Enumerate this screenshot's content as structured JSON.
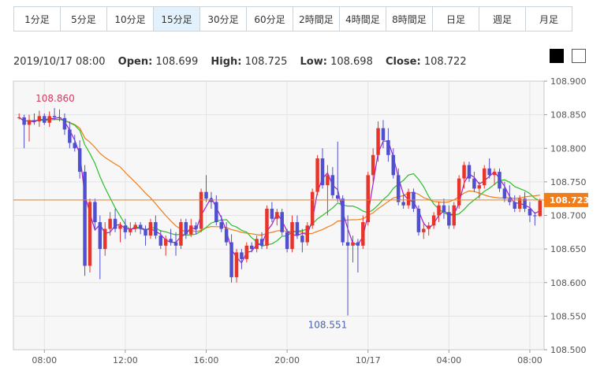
{
  "tabs": [
    {
      "label": "1分足",
      "active": false
    },
    {
      "label": "5分足",
      "active": false
    },
    {
      "label": "10分足",
      "active": false
    },
    {
      "label": "15分足",
      "active": true
    },
    {
      "label": "30分足",
      "active": false
    },
    {
      "label": "60分足",
      "active": false
    },
    {
      "label": "2時間足",
      "active": false
    },
    {
      "label": "4時間足",
      "active": false
    },
    {
      "label": "8時間足",
      "active": false
    },
    {
      "label": "日足",
      "active": false
    },
    {
      "label": "週足",
      "active": false
    },
    {
      "label": "月足",
      "active": false
    }
  ],
  "ohlc": {
    "datetime": "2019/10/17 08:00",
    "open_label": "Open:",
    "open": "108.699",
    "high_label": "High:",
    "high": "108.725",
    "low_label": "Low:",
    "low": "108.698",
    "close_label": "Close:",
    "close": "108.722"
  },
  "theme_buttons": [
    {
      "name": "dark-theme",
      "color": "#000000"
    },
    {
      "name": "light-theme",
      "color": "#ffffff"
    }
  ],
  "colors": {
    "up": "#e8352b",
    "down": "#4f4fcf",
    "ma_short": "#a020d0",
    "ma_mid": "#2bbf2b",
    "ma_long": "#f07d1a",
    "price_line": "#f07d1a",
    "price_tag": "#f07d1a",
    "high_label": "#d9385b",
    "low_label": "#4a63b0"
  },
  "chart_data": {
    "type": "candlestick",
    "interval": "15分足",
    "ylim": [
      108.5,
      108.9
    ],
    "y_ticks": [
      "108.900",
      "108.850",
      "108.800",
      "108.750",
      "108.700",
      "108.650",
      "108.600",
      "108.550",
      "108.500"
    ],
    "x_ticks": [
      {
        "label": "08:00",
        "index": 5
      },
      {
        "label": "12:00",
        "index": 21
      },
      {
        "label": "16:00",
        "index": 37
      },
      {
        "label": "20:00",
        "index": 53
      },
      {
        "label": "10/17",
        "index": 69
      },
      {
        "label": "04:00",
        "index": 85
      },
      {
        "label": "08:00",
        "index": 101
      }
    ],
    "current_price": "108.723",
    "high_annotation": {
      "label": "108.860",
      "index": 7,
      "value": 108.86
    },
    "low_annotation": {
      "label": "108.551",
      "index": 61,
      "value": 108.551
    },
    "candles": [
      [
        108.845,
        108.852,
        108.843,
        108.846
      ],
      [
        108.846,
        108.85,
        108.8,
        108.835
      ],
      [
        108.835,
        108.85,
        108.81,
        108.842
      ],
      [
        108.842,
        108.852,
        108.835,
        108.84
      ],
      [
        108.84,
        108.856,
        108.832,
        108.848
      ],
      [
        108.848,
        108.852,
        108.835,
        108.838
      ],
      [
        108.838,
        108.855,
        108.832,
        108.848
      ],
      [
        108.848,
        108.86,
        108.842,
        108.846
      ],
      [
        108.846,
        108.858,
        108.84,
        108.845
      ],
      [
        108.845,
        108.852,
        108.82,
        108.828
      ],
      [
        108.828,
        108.84,
        108.8,
        108.808
      ],
      [
        108.808,
        108.82,
        108.795,
        108.8
      ],
      [
        108.8,
        108.812,
        108.755,
        108.765
      ],
      [
        108.765,
        108.775,
        108.61,
        108.625
      ],
      [
        108.625,
        108.725,
        108.615,
        108.72
      ],
      [
        108.72,
        108.725,
        108.68,
        108.69
      ],
      [
        108.69,
        108.7,
        108.605,
        108.65
      ],
      [
        108.65,
        108.69,
        108.64,
        108.68
      ],
      [
        108.68,
        108.705,
        108.67,
        108.695
      ],
      [
        108.695,
        108.71,
        108.675,
        108.68
      ],
      [
        108.68,
        108.69,
        108.66,
        108.685
      ],
      [
        108.685,
        108.695,
        108.665,
        108.675
      ],
      [
        108.675,
        108.69,
        108.67,
        108.68
      ],
      [
        108.68,
        108.69,
        108.675,
        108.686
      ],
      [
        108.686,
        108.69,
        108.672,
        108.68
      ],
      [
        108.68,
        108.685,
        108.655,
        108.67
      ],
      [
        108.67,
        108.695,
        108.665,
        108.69
      ],
      [
        108.69,
        108.7,
        108.665,
        108.67
      ],
      [
        108.67,
        108.678,
        108.65,
        108.655
      ],
      [
        108.655,
        108.67,
        108.64,
        108.665
      ],
      [
        108.665,
        108.68,
        108.655,
        108.66
      ],
      [
        108.66,
        108.675,
        108.64,
        108.655
      ],
      [
        108.655,
        108.695,
        108.65,
        108.69
      ],
      [
        108.69,
        108.695,
        108.665,
        108.672
      ],
      [
        108.672,
        108.695,
        108.668,
        108.685
      ],
      [
        108.685,
        108.69,
        108.672,
        108.68
      ],
      [
        108.68,
        108.74,
        108.675,
        108.735
      ],
      [
        108.735,
        108.76,
        108.72,
        108.725
      ],
      [
        108.725,
        108.735,
        108.71,
        108.72
      ],
      [
        108.72,
        108.73,
        108.685,
        108.69
      ],
      [
        108.69,
        108.7,
        108.675,
        108.68
      ],
      [
        108.68,
        108.69,
        108.655,
        108.66
      ],
      [
        108.66,
        108.672,
        108.6,
        108.608
      ],
      [
        108.608,
        108.65,
        108.6,
        108.645
      ],
      [
        108.645,
        108.65,
        108.62,
        108.635
      ],
      [
        108.635,
        108.66,
        108.63,
        108.655
      ],
      [
        108.655,
        108.66,
        108.645,
        108.65
      ],
      [
        108.65,
        108.67,
        108.645,
        108.665
      ],
      [
        108.665,
        108.675,
        108.65,
        108.655
      ],
      [
        108.655,
        108.715,
        108.65,
        108.71
      ],
      [
        108.71,
        108.72,
        108.69,
        108.695
      ],
      [
        108.695,
        108.71,
        108.685,
        108.705
      ],
      [
        108.705,
        108.71,
        108.67,
        108.675
      ],
      [
        108.675,
        108.68,
        108.645,
        108.65
      ],
      [
        108.65,
        108.7,
        108.645,
        108.69
      ],
      [
        108.69,
        108.7,
        108.665,
        108.67
      ],
      [
        108.67,
        108.68,
        108.645,
        108.66
      ],
      [
        108.66,
        108.69,
        108.655,
        108.685
      ],
      [
        108.685,
        108.74,
        108.68,
        108.735
      ],
      [
        108.735,
        108.79,
        108.73,
        108.785
      ],
      [
        108.785,
        108.8,
        108.74,
        108.745
      ],
      [
        108.745,
        108.775,
        108.7,
        108.76
      ],
      [
        108.76,
        108.772,
        108.725,
        108.73
      ],
      [
        108.73,
        108.81,
        108.72,
        108.725
      ],
      [
        108.725,
        108.73,
        108.655,
        108.66
      ],
      [
        108.66,
        108.7,
        108.551,
        108.655
      ],
      [
        108.655,
        108.67,
        108.63,
        108.66
      ],
      [
        108.66,
        108.665,
        108.615,
        108.655
      ],
      [
        108.655,
        108.7,
        108.65,
        108.69
      ],
      [
        108.69,
        108.765,
        108.685,
        108.76
      ],
      [
        108.76,
        108.8,
        108.75,
        108.79
      ],
      [
        108.79,
        108.84,
        108.78,
        108.83
      ],
      [
        108.83,
        108.842,
        108.8,
        108.812
      ],
      [
        108.812,
        108.83,
        108.78,
        108.79
      ],
      [
        108.79,
        108.8,
        108.755,
        108.76
      ],
      [
        108.76,
        108.77,
        108.715,
        108.72
      ],
      [
        108.72,
        108.73,
        108.71,
        108.715
      ],
      [
        108.715,
        108.74,
        108.71,
        108.735
      ],
      [
        108.735,
        108.74,
        108.705,
        108.71
      ],
      [
        108.71,
        108.715,
        108.67,
        108.675
      ],
      [
        108.675,
        108.69,
        108.665,
        108.68
      ],
      [
        108.68,
        108.69,
        108.67,
        108.685
      ],
      [
        108.685,
        108.705,
        108.68,
        108.7
      ],
      [
        108.7,
        108.72,
        108.69,
        108.715
      ],
      [
        108.715,
        108.725,
        108.695,
        108.705
      ],
      [
        108.705,
        108.715,
        108.68,
        108.685
      ],
      [
        108.685,
        108.72,
        108.68,
        108.715
      ],
      [
        108.715,
        108.76,
        108.71,
        108.755
      ],
      [
        108.755,
        108.78,
        108.74,
        108.775
      ],
      [
        108.775,
        108.78,
        108.75,
        108.755
      ],
      [
        108.755,
        108.765,
        108.735,
        108.74
      ],
      [
        108.74,
        108.75,
        108.725,
        108.745
      ],
      [
        108.745,
        108.775,
        108.74,
        108.77
      ],
      [
        108.77,
        108.785,
        108.755,
        108.76
      ],
      [
        108.76,
        108.77,
        108.745,
        108.765
      ],
      [
        108.765,
        108.77,
        108.735,
        108.74
      ],
      [
        108.74,
        108.75,
        108.72,
        108.725
      ],
      [
        108.725,
        108.745,
        108.715,
        108.72
      ],
      [
        108.72,
        108.73,
        108.705,
        108.71
      ],
      [
        108.71,
        108.73,
        108.705,
        108.725
      ],
      [
        108.725,
        108.735,
        108.705,
        108.71
      ],
      [
        108.71,
        108.72,
        108.69,
        108.7
      ],
      [
        108.7,
        108.705,
        108.685,
        108.699
      ],
      [
        108.699,
        108.725,
        108.698,
        108.722
      ]
    ]
  }
}
